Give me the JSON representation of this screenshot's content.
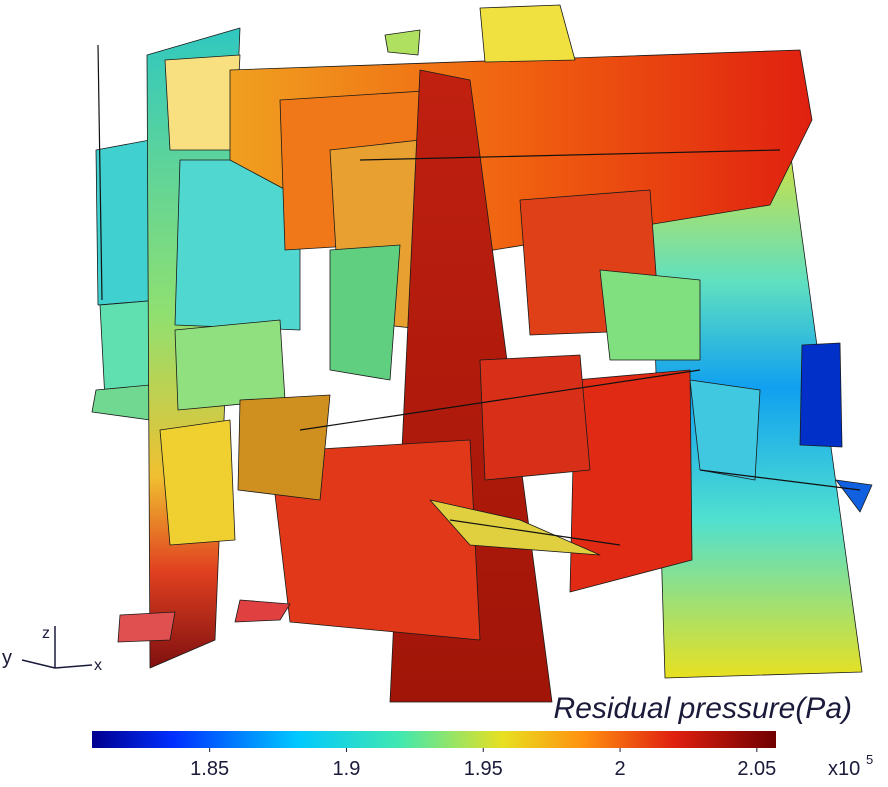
{
  "axes": {
    "y": "y",
    "z": "z",
    "x": "x"
  },
  "colorbar": {
    "label": "Residual pressure(Pa)",
    "range": [
      1.807,
      2.057
    ],
    "ticks": [
      1.85,
      1.9,
      1.95,
      2,
      2.05
    ],
    "multiplier": "x10",
    "exponent": "5"
  }
}
